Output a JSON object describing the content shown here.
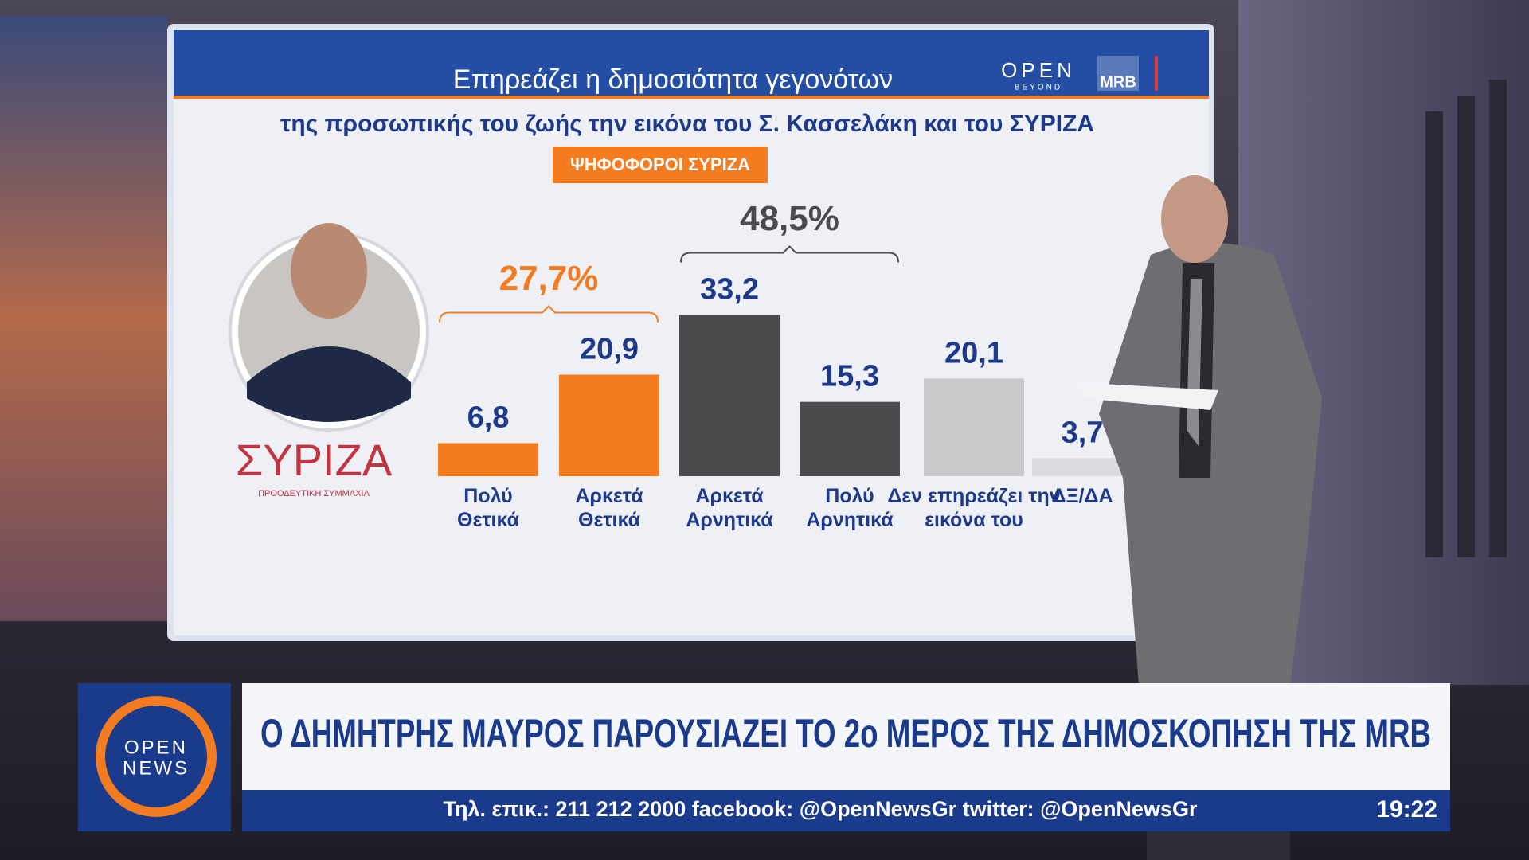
{
  "chart_data": {
    "type": "bar",
    "title": "Επηρεάζει η δημοσιότητα γεγονότων",
    "subtitle": "της προσωπικής του ζωής την εικόνα του Σ. Κασσελάκη και του ΣΥΡΙΖΑ",
    "badge": "ΨΗΦΟΦΟΡΟΙ ΣΥΡΙΖΑ",
    "categories": [
      "Πολύ Θετικά",
      "Αρκετά Θετικά",
      "Αρκετά Αρνητικά",
      "Πολύ Αρνητικά",
      "Δεν επηρεάζει την εικόνα του",
      "ΔΞ/ΔΑ"
    ],
    "values": [
      6.8,
      20.9,
      33.2,
      15.3,
      20.1,
      3.7
    ],
    "value_labels": [
      "6,8",
      "20,9",
      "33,2",
      "15,3",
      "20,1",
      "3,7"
    ],
    "colors": [
      "#f47c20",
      "#f47c20",
      "#4b4b4d",
      "#4b4b4d",
      "#c9c9cc",
      "#dcdce0"
    ],
    "annotations": [
      {
        "label": "27,7%",
        "value": 27.7,
        "color": "#f47c20"
      },
      {
        "label": "48,5%",
        "value": 48.5,
        "color": "#4b4b4d"
      }
    ],
    "logos": {
      "open": "OPEN",
      "beyond": "BEYOND",
      "mrb": "MRB",
      "party": "ΣΥΡΙΖΑ",
      "party_sub": "ΠΡΟΟΔΕΥΤΙΚΗ ΣΥΜΜΑΧΙΑ"
    }
  },
  "broadcast": {
    "headline": "Ο ΔΗΜΗΤΡΗΣ ΜΑΥΡΟΣ ΠΑΡΟΥΣΙΑΖΕΙ ΤΟ 2ο ΜΕΡΟΣ ΤΗΣ ΔΗΜΟΣΚΟΠΗΣΗ ΤΗΣ MRB",
    "ticker": "Τηλ. επικ.: 211 212 2000 facebook: @OpenNewsGr twitter: @OpenNewsGr",
    "time": "19:22",
    "logo_top": "OPEN",
    "logo_bottom": "NEWS"
  }
}
